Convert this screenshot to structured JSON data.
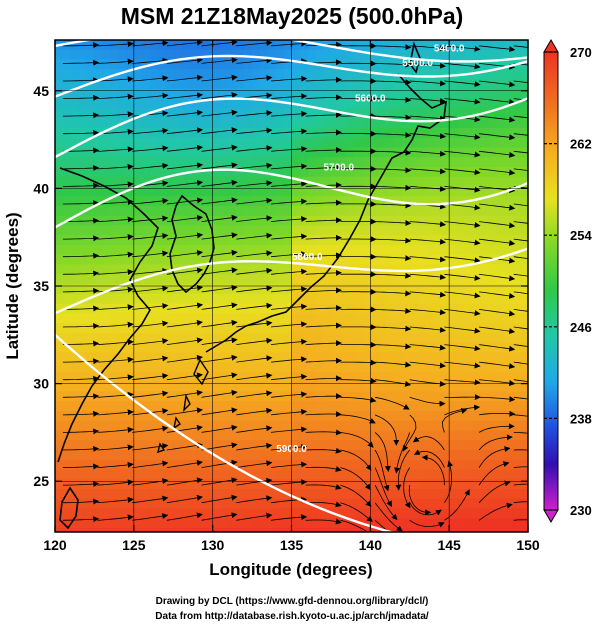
{
  "title": "MSM 21Z18May2025 (500.0hPa)",
  "xlabel": "Longitude (degrees)",
  "ylabel": "Latitude  (degrees)",
  "x_ticks": [
    "120",
    "125",
    "130",
    "135",
    "140",
    "145",
    "150"
  ],
  "y_ticks": [
    "25",
    "30",
    "35",
    "40",
    "45"
  ],
  "colorbar": {
    "ticks": [
      "270",
      "262",
      "254",
      "246",
      "238",
      "230"
    ],
    "min": 230,
    "max": 270
  },
  "contours": [
    {
      "label": "5400.0",
      "value": 5400
    },
    {
      "label": "5500.0",
      "value": 5500
    },
    {
      "label": "5600.0",
      "value": 5600
    },
    {
      "label": "5700.0",
      "value": 5700
    },
    {
      "label": "5800.0",
      "value": 5800
    },
    {
      "label": "5900.0",
      "value": 5900
    }
  ],
  "credits": {
    "line1": "Drawing by DCL (https://www.gfd-dennou.org/library/dcl/)",
    "line2": "Data from http://database.rish.kyoto-u.ac.jp/arch/jmadata/"
  },
  "chart_data": {
    "type": "heatmap",
    "title": "MSM 21Z18May2025 (500.0hPa)",
    "xlabel": "Longitude (degrees)",
    "ylabel": "Latitude  (degrees)",
    "xlim": [
      120,
      150
    ],
    "ylim": [
      22.4,
      47.6
    ],
    "colorbar_range": [
      230,
      270
    ],
    "colorbar_ticks": [
      230,
      238,
      246,
      254,
      262,
      270
    ],
    "grid": true,
    "overlays": [
      "streamlines",
      "height contours",
      "coastlines"
    ],
    "contour_values": [
      5400,
      5500,
      5600,
      5700,
      5800,
      5900
    ],
    "anticyclone_center": {
      "lon": 143.5,
      "lat": 24.5
    }
  }
}
